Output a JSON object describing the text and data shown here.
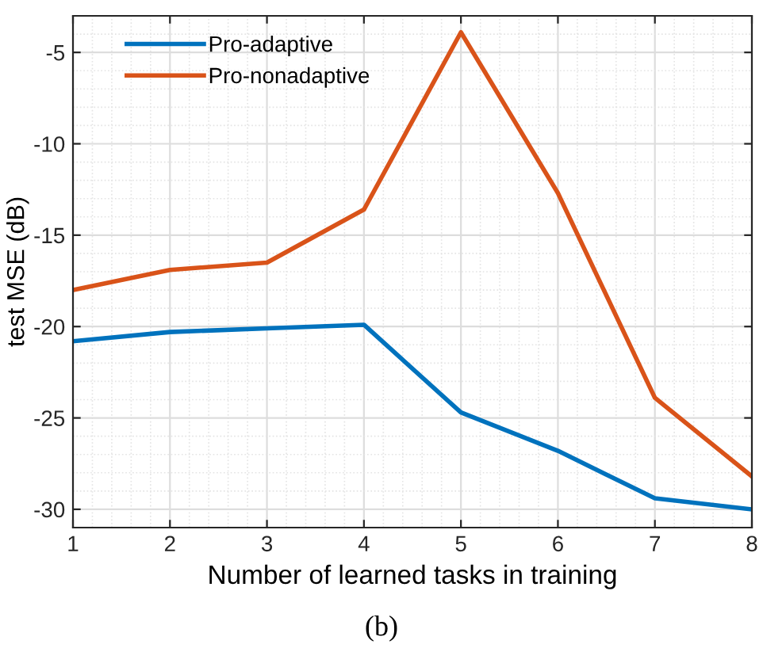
{
  "chart_data": {
    "type": "line",
    "xlabel": "Number of learned tasks in training",
    "ylabel": "test MSE (dB)",
    "x": [
      1,
      2,
      3,
      4,
      5,
      6,
      7,
      8
    ],
    "series": [
      {
        "name": "Pro-adaptive",
        "color": "#0072bd",
        "values": [
          -20.8,
          -20.3,
          -20.1,
          -19.9,
          -24.7,
          -26.8,
          -29.4,
          -30.0
        ]
      },
      {
        "name": "Pro-nonadaptive",
        "color": "#d95319",
        "values": [
          -18.0,
          -16.9,
          -16.5,
          -13.6,
          -3.9,
          -12.7,
          -23.9,
          -28.2
        ]
      }
    ],
    "xlim": [
      1,
      8
    ],
    "ylim": [
      -31,
      -3
    ],
    "xticks": [
      1,
      2,
      3,
      4,
      5,
      6,
      7,
      8
    ],
    "yticks": [
      -30,
      -25,
      -20,
      -15,
      -10,
      -5
    ],
    "grid": true,
    "legend": "top left",
    "marker": "none",
    "line_style": "solid",
    "annotations": [
      "(b)"
    ]
  }
}
